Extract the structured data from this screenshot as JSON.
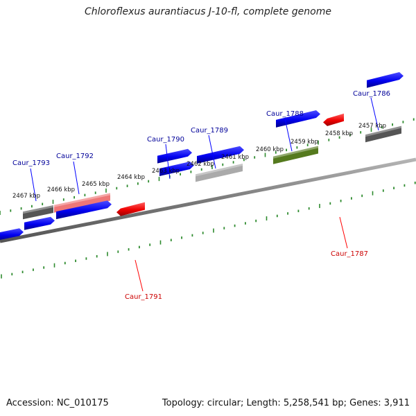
{
  "title": "Chloroflexus aurantiacus J-10-fl, complete genome",
  "footer": {
    "accession": "Accession: NC_010175",
    "topology": "Topology: circular; Length: 5,258,541 bp; Genes: 3,911"
  },
  "colors": {
    "background": "#ffffff",
    "backbone": "#8a8a8a",
    "tick": "#2e8b2e",
    "forward_gene": "#0000ff",
    "reverse_gene": "#ff0000",
    "label_forward": "#000099",
    "label_reverse": "#cc0000"
  },
  "kbp_labels": [
    "2467 kbp",
    "2466 kbp",
    "2465 kbp",
    "2464 kbp",
    "2463 kbp",
    "2462 kbp",
    "2461 kbp",
    "2460 kbp",
    "2459 kbp",
    "2458 kbp",
    "2457 kbp"
  ],
  "gene_labels": [
    {
      "text": "Caur_1793",
      "strand": "forward"
    },
    {
      "text": "Caur_1792",
      "strand": "forward"
    },
    {
      "text": "Caur_1791",
      "strand": "reverse"
    },
    {
      "text": "Caur_1790",
      "strand": "forward"
    },
    {
      "text": "Caur_1789",
      "strand": "forward"
    },
    {
      "text": "Caur_1788",
      "strand": "forward"
    },
    {
      "text": "Caur_1787",
      "strand": "reverse"
    },
    {
      "text": "Caur_1786",
      "strand": "forward"
    }
  ],
  "feature_bars": [
    {
      "type": "cog",
      "color": "#555555"
    },
    {
      "type": "cog",
      "color": "#ee7777"
    },
    {
      "type": "cog",
      "color": "#aaaaaa"
    },
    {
      "type": "cog",
      "color": "#557a1e"
    },
    {
      "type": "cog",
      "color": "#555555"
    }
  ]
}
